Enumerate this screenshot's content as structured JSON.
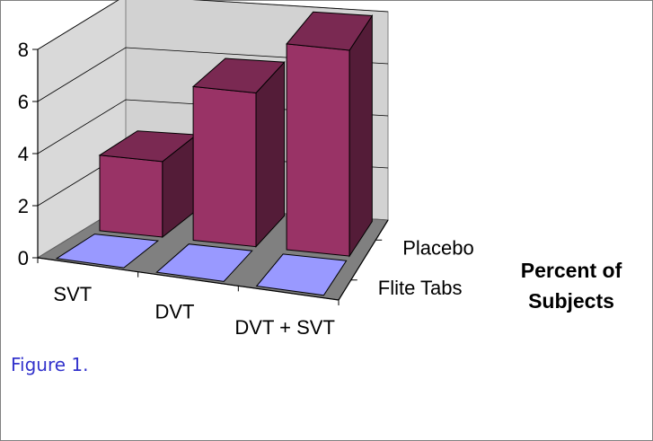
{
  "chart_data": {
    "type": "bar",
    "variant": "3d-clustered-depth",
    "categories": [
      "SVT",
      "DVT",
      "DVT + SVT"
    ],
    "series": [
      {
        "name": "Flite Tabs",
        "values": [
          0,
          0,
          0
        ],
        "color": "#9999ff"
      },
      {
        "name": "Placebo",
        "values": [
          2.9,
          5.9,
          7.9
        ],
        "color": "#993366"
      }
    ],
    "yticks": [
      "0",
      "2",
      "4",
      "6",
      "8"
    ],
    "ylim": [
      0,
      8
    ],
    "grid": true,
    "zlabel_line1": "Percent of",
    "zlabel_line2": "Subjects"
  },
  "caption": "Figure 1."
}
